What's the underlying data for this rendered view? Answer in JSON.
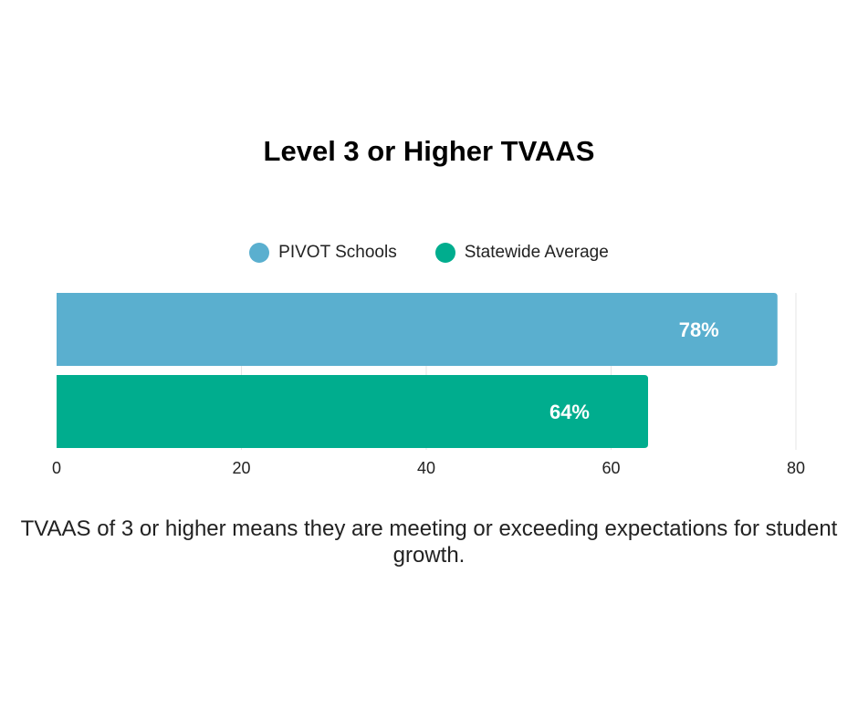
{
  "chart_data": {
    "type": "bar",
    "orientation": "horizontal",
    "title": "Level 3 or Higher TVAAS",
    "categories": [
      "PIVOT Schools",
      "Statewide Average"
    ],
    "series": [
      {
        "name": "PIVOT Schools",
        "value": 78,
        "label": "78%",
        "color": "#5aafcf"
      },
      {
        "name": "Statewide Average",
        "value": 64,
        "label": "64%",
        "color": "#00ad8e"
      }
    ],
    "xlim": [
      0,
      80
    ],
    "xticks": [
      0,
      20,
      40,
      60,
      80
    ],
    "grid": true,
    "legend_position": "top"
  },
  "caption": "TVAAS of 3 or higher means they are meeting or exceeding expectations for student growth."
}
